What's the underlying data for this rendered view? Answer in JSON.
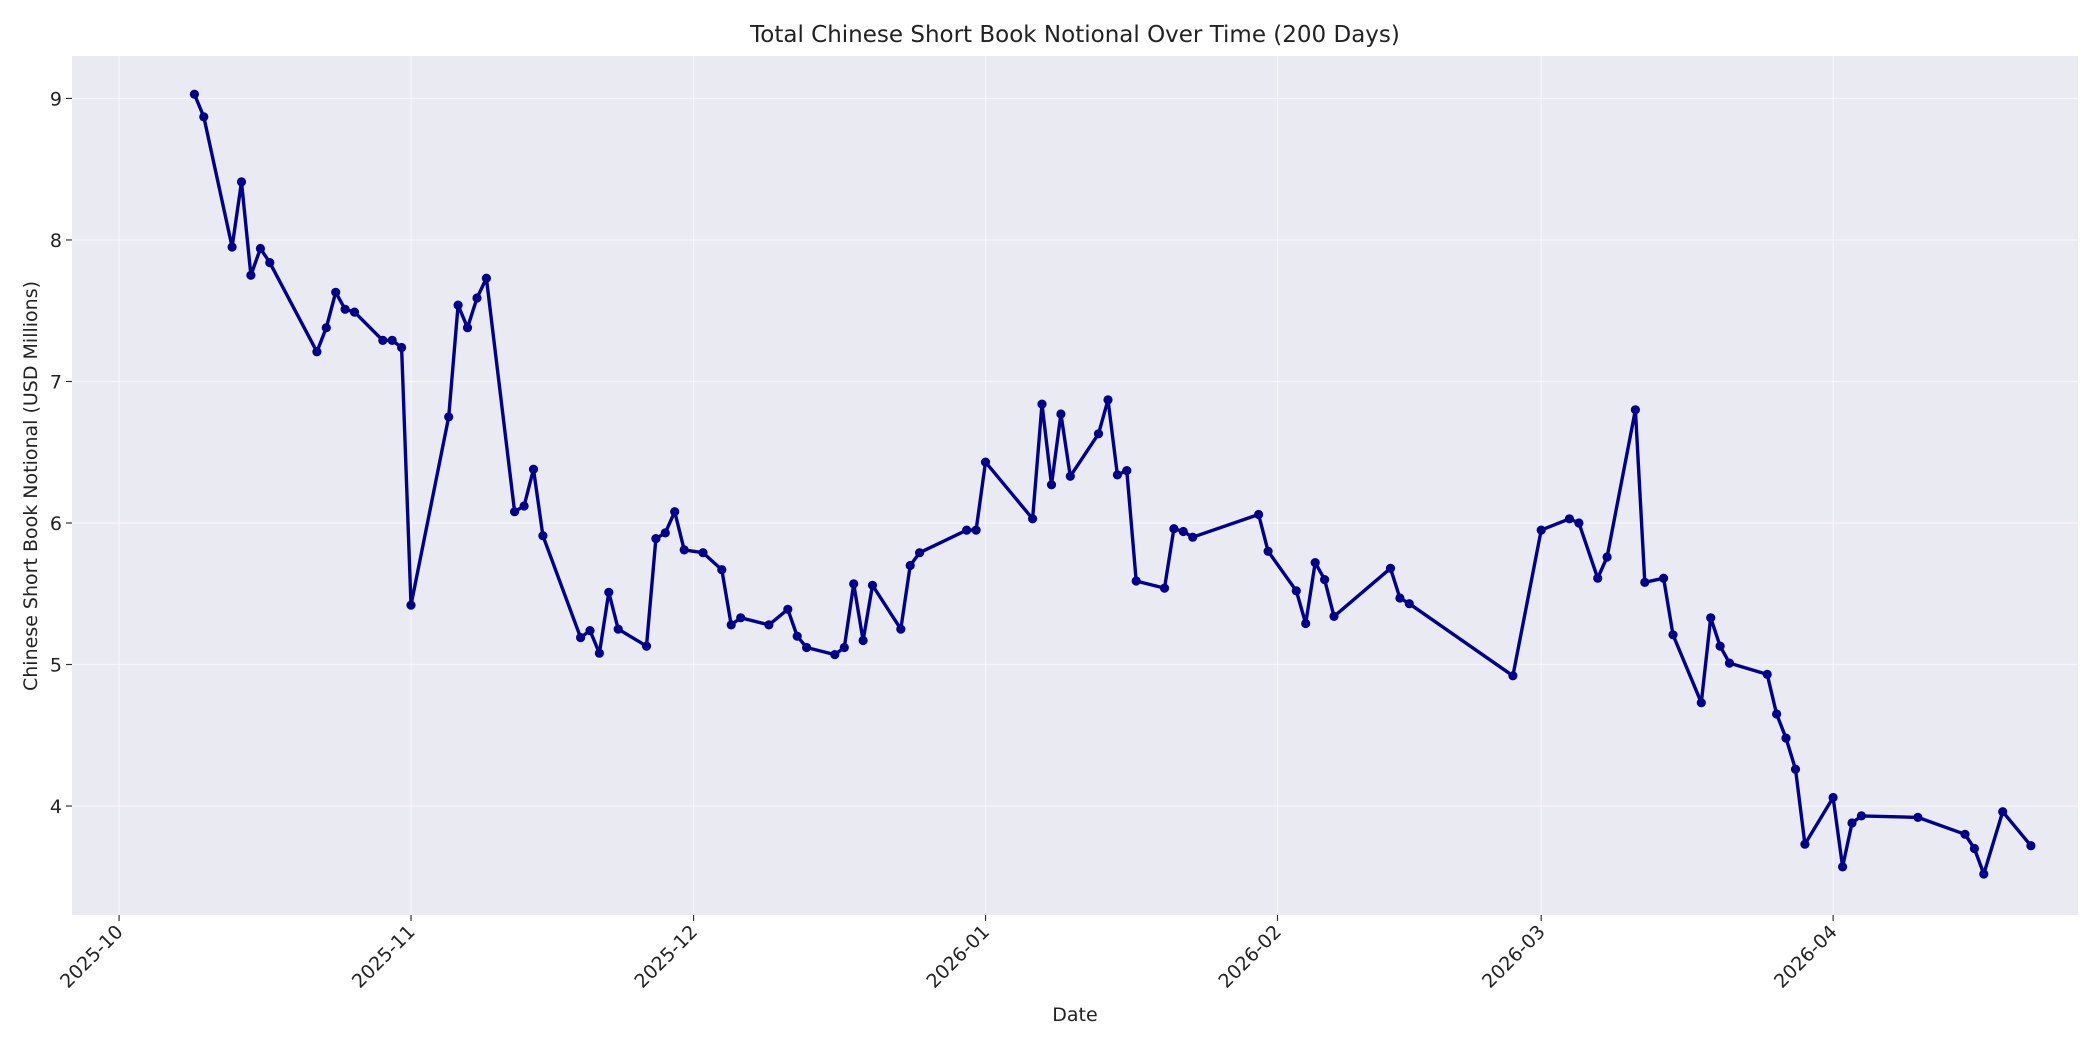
{
  "chart_data": {
    "type": "line",
    "title": "Total Chinese Short Book Notional Over Time (200 Days)",
    "xlabel": "Date",
    "ylabel": "Chinese Short Book Notional (USD Millions)",
    "x_tick_labels": [
      "2025-10",
      "2025-11",
      "2025-12",
      "2026-01",
      "2026-02",
      "2026-03",
      "2026-04"
    ],
    "x_ticks": [
      "2025-10-01",
      "2025-11-01",
      "2025-12-01",
      "2026-01-01",
      "2026-02-01",
      "2026-03-01",
      "2026-04-01"
    ],
    "y_ticks": [
      4,
      5,
      6,
      7,
      8,
      9
    ],
    "xlim": [
      "2025-09-26",
      "2026-04-27"
    ],
    "ylim": [
      3.23,
      9.3
    ],
    "grid": true,
    "colors": {
      "plot_background": "#eaeaf2",
      "line": "#00008b",
      "grid": "#ffffff"
    },
    "series": [
      {
        "x": [
          "2025-10-09",
          "2025-10-10",
          "2025-10-13",
          "2025-10-14",
          "2025-10-15",
          "2025-10-16",
          "2025-10-17",
          "2025-10-22",
          "2025-10-23",
          "2025-10-24",
          "2025-10-25",
          "2025-10-26",
          "2025-10-29",
          "2025-10-30",
          "2025-10-31",
          "2025-11-01",
          "2025-11-05",
          "2025-11-06",
          "2025-11-07",
          "2025-11-08",
          "2025-11-09",
          "2025-11-12",
          "2025-11-13",
          "2025-11-14",
          "2025-11-15",
          "2025-11-19",
          "2025-11-20",
          "2025-11-21",
          "2025-11-22",
          "2025-11-23",
          "2025-11-26",
          "2025-11-27",
          "2025-11-28",
          "2025-11-29",
          "2025-11-30",
          "2025-12-02",
          "2025-12-04",
          "2025-12-05",
          "2025-12-06",
          "2025-12-09",
          "2025-12-11",
          "2025-12-12",
          "2025-12-13",
          "2025-12-16",
          "2025-12-17",
          "2025-12-18",
          "2025-12-19",
          "2025-12-20",
          "2025-12-23",
          "2025-12-24",
          "2025-12-25",
          "2025-12-30",
          "2025-12-31",
          "2026-01-01",
          "2026-01-06",
          "2026-01-07",
          "2026-01-08",
          "2026-01-09",
          "2026-01-10",
          "2026-01-13",
          "2026-01-14",
          "2026-01-15",
          "2026-01-16",
          "2026-01-17",
          "2026-01-20",
          "2026-01-21",
          "2026-01-22",
          "2026-01-23",
          "2026-01-30",
          "2026-01-31",
          "2026-02-03",
          "2026-02-04",
          "2026-02-05",
          "2026-02-06",
          "2026-02-07",
          "2026-02-13",
          "2026-02-14",
          "2026-02-15",
          "2026-02-26",
          "2026-03-01",
          "2026-03-04",
          "2026-03-05",
          "2026-03-07",
          "2026-03-08",
          "2026-03-11",
          "2026-03-12",
          "2026-03-14",
          "2026-03-15",
          "2026-03-18",
          "2026-03-19",
          "2026-03-20",
          "2026-03-21",
          "2026-03-25",
          "2026-03-26",
          "2026-03-27",
          "2026-03-28",
          "2026-03-29",
          "2026-04-01",
          "2026-04-02",
          "2026-04-03",
          "2026-04-04",
          "2026-04-10",
          "2026-04-15",
          "2026-04-16",
          "2026-04-17",
          "2026-04-19",
          "2026-04-22"
        ],
        "values": [
          9.03,
          8.87,
          7.95,
          8.41,
          7.75,
          7.94,
          7.84,
          7.21,
          7.38,
          7.63,
          7.51,
          7.49,
          7.29,
          7.29,
          7.24,
          5.42,
          6.75,
          7.54,
          7.38,
          7.59,
          7.73,
          6.08,
          6.12,
          6.38,
          5.91,
          5.19,
          5.24,
          5.08,
          5.51,
          5.25,
          5.13,
          5.89,
          5.93,
          6.08,
          5.81,
          5.79,
          5.67,
          5.28,
          5.33,
          5.28,
          5.39,
          5.2,
          5.12,
          5.07,
          5.12,
          5.57,
          5.17,
          5.56,
          5.25,
          5.7,
          5.79,
          5.95,
          5.95,
          6.43,
          6.03,
          6.84,
          6.27,
          6.77,
          6.33,
          6.63,
          6.87,
          6.34,
          6.37,
          5.59,
          5.54,
          5.96,
          5.94,
          5.9,
          6.06,
          5.8,
          5.52,
          5.29,
          5.72,
          5.6,
          5.34,
          5.68,
          5.47,
          5.43,
          4.92,
          5.95,
          6.03,
          6.0,
          5.61,
          5.76,
          6.8,
          5.58,
          5.61,
          5.21,
          4.73,
          5.33,
          5.13,
          5.01,
          4.93,
          4.65,
          4.48,
          4.26,
          3.73,
          4.06,
          3.57,
          3.88,
          3.93,
          3.92,
          3.8,
          3.7,
          3.52,
          3.96,
          3.72
        ]
      }
    ]
  }
}
